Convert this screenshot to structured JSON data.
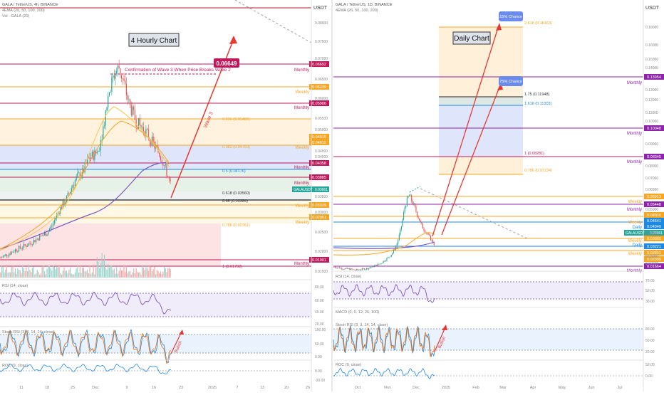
{
  "left_chart": {
    "header": {
      "symbol": "GALA / TetherUS, 4h, BINANCE",
      "ema": "4EMA (26, 50, 100, 200)",
      "vol": "Vol · GALA (20)"
    },
    "title": "4 Hourly Chart",
    "currency": "USDT",
    "target_label": "0.06649",
    "confirmation_text": "Confirmation of Wave 3 When Price Breaks Wave 2",
    "wave_label": "Wave 3",
    "bullish_label": "Bullish",
    "fib_labels": [
      {
        "text": "0.236 (0.05482)",
        "price": 0.05482
      },
      {
        "text": "0.382 (0.04759)",
        "price": 0.04759
      },
      {
        "text": "0.5 (0.04176)",
        "price": 0.04176
      },
      {
        "text": "0.618 (0.03560)",
        "price": 0.0356
      },
      {
        "text": "0.65 (0.03384)",
        "price": 0.03384
      },
      {
        "text": "0.786 (0.02761)",
        "price": 0.02761
      },
      {
        "text": "1 (0.01702)",
        "price": 0.01702
      }
    ],
    "level_tags": [
      {
        "price": 0.06692,
        "label": "0.06692",
        "note": "Monthly"
      },
      {
        "price": 0.06239,
        "label": "0.06239",
        "note": "Weekly"
      },
      {
        "price": 0.05906,
        "label": "0.05906",
        "note": "Monthly"
      },
      {
        "price": 0.04916,
        "label": "0.04916",
        "note": ""
      },
      {
        "price": 0.04815,
        "label": "0.04815",
        "note": "Weekly"
      },
      {
        "price": 0.04358,
        "label": "0.04358",
        "note": "Monthly"
      },
      {
        "price": 0.03885,
        "label": "0.03885",
        "note": "Monthly"
      },
      {
        "price": 0.03339,
        "label": "0.03339",
        "note": "Weekly"
      },
      {
        "price": 0.02961,
        "label": "0.02961",
        "note": "Weekly"
      },
      {
        "price": 0.01901,
        "label": "0.01901",
        "note": "Monthly"
      }
    ],
    "price_tag": {
      "symbol": "GALAUSDT",
      "price": "0.03661"
    },
    "axis_ticks": [
      "0.08000",
      "0.07500",
      "0.07000",
      "0.06500",
      "0.06000",
      "0.05500",
      "0.05000",
      "0.04500",
      "0.04000",
      "0.03500",
      "0.03000",
      "0.02500",
      "0.02000",
      "0.01500"
    ],
    "rsi": {
      "label": "RSI (14, close)",
      "ticks": [
        "80.00",
        "60.00",
        "40.00",
        "20.00"
      ]
    },
    "stoch": {
      "label": "Stoch RSI (3, 3, 14, 14, close)",
      "ticks": [
        "100.00",
        "50.00",
        "0.00"
      ]
    },
    "roc": {
      "label": "ROC (9, close)",
      "ticks": [
        "0.00",
        "-20.00"
      ]
    },
    "date_ticks": [
      "11",
      "18",
      "25",
      "Dec",
      "9",
      "16",
      "23",
      "2025",
      "7",
      "13",
      "20",
      "26"
    ]
  },
  "right_chart": {
    "header": {
      "symbol": "GALA / TetherUS, 1D, BINANCE",
      "ema": "4EMA (26, 50, 100, 200)"
    },
    "title": "Daily Chart",
    "currency": "USDT",
    "chance_15": "15% Chance",
    "chance_75": "75% Chance",
    "fib_labels": [
      {
        "text": "2.618 (0.18163)",
        "price": 0.18163
      },
      {
        "text": "1.75 (0.11948)",
        "price": 0.11948
      },
      {
        "text": "1.618 (0.11303)",
        "price": 0.11303
      },
      {
        "text": "1 (0.08281)",
        "price": 0.08281
      },
      {
        "text": "0.786 (0.07234)",
        "price": 0.07234
      }
    ],
    "level_tags": [
      {
        "price": 0.13954,
        "label": "0.13954",
        "note": "Monthly"
      },
      {
        "price": 0.10048,
        "label": "0.10048",
        "note": "Monthly"
      },
      {
        "price": 0.08345,
        "label": "0.08345",
        "note": "Monthly"
      },
      {
        "price": 0.05913,
        "label": "0.05913",
        "note": "Weekly"
      },
      {
        "price": 0.05448,
        "label": "0.05448",
        "note": "Monthly"
      },
      {
        "price": 0.04916,
        "label": "0.04916",
        "note": ""
      },
      {
        "price": 0.04641,
        "label": "0.04641",
        "note": "Weekly"
      },
      {
        "price": 0.04349,
        "label": "0.04349",
        "note": "Daily"
      },
      {
        "price": 0.03565,
        "label": "0.03565",
        "note": "Weekly"
      },
      {
        "price": 0.03221,
        "label": "0.03221",
        "note": "Daily"
      },
      {
        "price": 0.02831,
        "label": "0.02831",
        "note": "Weekly"
      },
      {
        "price": 0.02399,
        "label": "0.02399",
        "note": ""
      },
      {
        "price": 0.01664,
        "label": "0.01664",
        "note": "Monthly"
      }
    ],
    "price_tag": {
      "symbol": "GALAUSDT",
      "price": "0.03661"
    },
    "axis_ticks": [
      "0.18000",
      "0.16000",
      "0.15000",
      "0.14000",
      "0.13000",
      "0.12000",
      "0.11000",
      "0.10000",
      "0.09000",
      "0.08000",
      "0.07000",
      "0.06000",
      "0.05000",
      "0.04000",
      "0.03000",
      "0.02000"
    ],
    "rsi": {
      "label": "RSI (14, close)",
      "ticks": [
        "70.00",
        "50.00",
        "30.00"
      ]
    },
    "macd": {
      "label": "MACD (0, 0, 12, 26, 100)"
    },
    "stoch": {
      "label": "Stoch RSI (3, 3, 14, 14, close)",
      "ticks": [
        "80.00",
        "50.00",
        "20.00"
      ],
      "bullish_label": "Bullish"
    },
    "roc": {
      "label": "ROC (9, close)",
      "ticks": [
        "50.00",
        "0.00"
      ]
    },
    "date_ticks": [
      "Oct",
      "Nov",
      "Dec",
      "2025",
      "Feb",
      "Mar",
      "Apr",
      "May",
      "Jun",
      "Jul"
    ]
  },
  "chart_data": [
    {
      "type": "line",
      "title": "4 Hourly Chart",
      "series": [
        {
          "name": "GALA / TetherUS",
          "values": [
            0.0185,
            0.0192,
            0.0198,
            0.0205,
            0.021,
            0.0215,
            0.0222,
            0.023,
            0.0238,
            0.0245,
            0.0262,
            0.029,
            0.031,
            0.033,
            0.036,
            0.038,
            0.039,
            0.042,
            0.043,
            0.044,
            0.05,
            0.058,
            0.062,
            0.064,
            0.06,
            0.055,
            0.052,
            0.05,
            0.049,
            0.047,
            0.045,
            0.043,
            0.04,
            0.036
          ]
        }
      ],
      "ylim": [
        0.015,
        0.08
      ],
      "colors": {
        "up": "#26a69a",
        "down": "#ef5350"
      }
    },
    {
      "type": "line",
      "title": "Daily Chart",
      "series": [
        {
          "name": "GALA / TetherUS",
          "values": [
            0.021,
            0.0205,
            0.02,
            0.0198,
            0.0195,
            0.019,
            0.0192,
            0.0196,
            0.02,
            0.021,
            0.022,
            0.023,
            0.025,
            0.027,
            0.03,
            0.035,
            0.045,
            0.06,
            0.068,
            0.062,
            0.055,
            0.048,
            0.044,
            0.04,
            0.036
          ]
        }
      ],
      "ylim": [
        0.015,
        0.19
      ],
      "colors": {
        "up": "#26a69a",
        "down": "#ef5350"
      }
    }
  ]
}
